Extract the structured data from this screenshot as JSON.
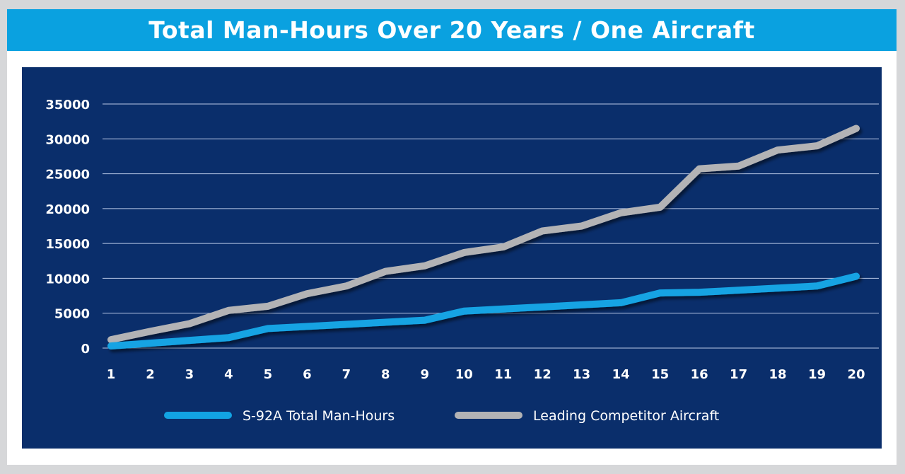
{
  "chart_data": {
    "type": "line",
    "title": "Total Man-Hours Over 20 Years / One Aircraft",
    "xlabel": "",
    "ylabel": "",
    "x": [
      1,
      2,
      3,
      4,
      5,
      6,
      7,
      8,
      9,
      10,
      11,
      12,
      13,
      14,
      15,
      16,
      17,
      18,
      19,
      20
    ],
    "ylim": [
      0,
      35000
    ],
    "yticks": [
      0,
      5000,
      10000,
      15000,
      20000,
      25000,
      30000,
      35000
    ],
    "grid": true,
    "legend_position": "bottom",
    "series": [
      {
        "name": "S-92A Total Man-Hours",
        "color": "#12a3e3",
        "values": [
          300,
          700,
          1100,
          1500,
          2800,
          3100,
          3400,
          3700,
          4000,
          5300,
          5600,
          5900,
          6200,
          6500,
          7900,
          8000,
          8300,
          8600,
          8900,
          10300
        ]
      },
      {
        "name": "Leading Competitor Aircraft",
        "color": "#b3b3b5",
        "values": [
          1200,
          2400,
          3500,
          5400,
          6000,
          7800,
          8900,
          11000,
          11800,
          13700,
          14500,
          16800,
          17500,
          19400,
          20200,
          25700,
          26100,
          28400,
          29000,
          31500
        ]
      }
    ]
  }
}
